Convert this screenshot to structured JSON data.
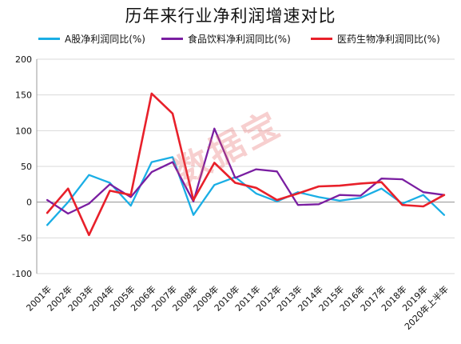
{
  "chart_data": {
    "type": "line",
    "title": "历年来行业净利润增速对比",
    "categories": [
      "2001年",
      "2002年",
      "2003年",
      "2004年",
      "2005年",
      "2006年",
      "2007年",
      "2008年",
      "2009年",
      "2010年",
      "2011年",
      "2012年",
      "2013年",
      "2014年",
      "2015年",
      "2016年",
      "2017年",
      "2018年",
      "2019年",
      "2020年上半年"
    ],
    "ylim": [
      -100,
      200
    ],
    "yticks": [
      -100,
      -50,
      0,
      50,
      100,
      150,
      200
    ],
    "grid": true,
    "legend": "top",
    "series": [
      {
        "name": "A股净利润同比(%)",
        "color": "#1aaee5",
        "values": [
          -32,
          0,
          38,
          27,
          -5,
          56,
          63,
          -18,
          24,
          35,
          12,
          1,
          14,
          7,
          2,
          6,
          19,
          -2,
          10,
          -18
        ]
      },
      {
        "name": "食品饮料净利润同比(%)",
        "color": "#7a1ea1",
        "values": [
          3,
          -16,
          -2,
          25,
          7,
          42,
          56,
          1,
          103,
          34,
          46,
          43,
          -4,
          -3,
          10,
          9,
          33,
          32,
          14,
          10
        ]
      },
      {
        "name": "医药生物净利润同比(%)",
        "color": "#e8202a",
        "values": [
          -15,
          19,
          -46,
          16,
          10,
          152,
          124,
          3,
          55,
          27,
          20,
          3,
          12,
          22,
          23,
          26,
          28,
          -4,
          -6,
          10
        ]
      }
    ]
  },
  "watermark": "数据宝"
}
